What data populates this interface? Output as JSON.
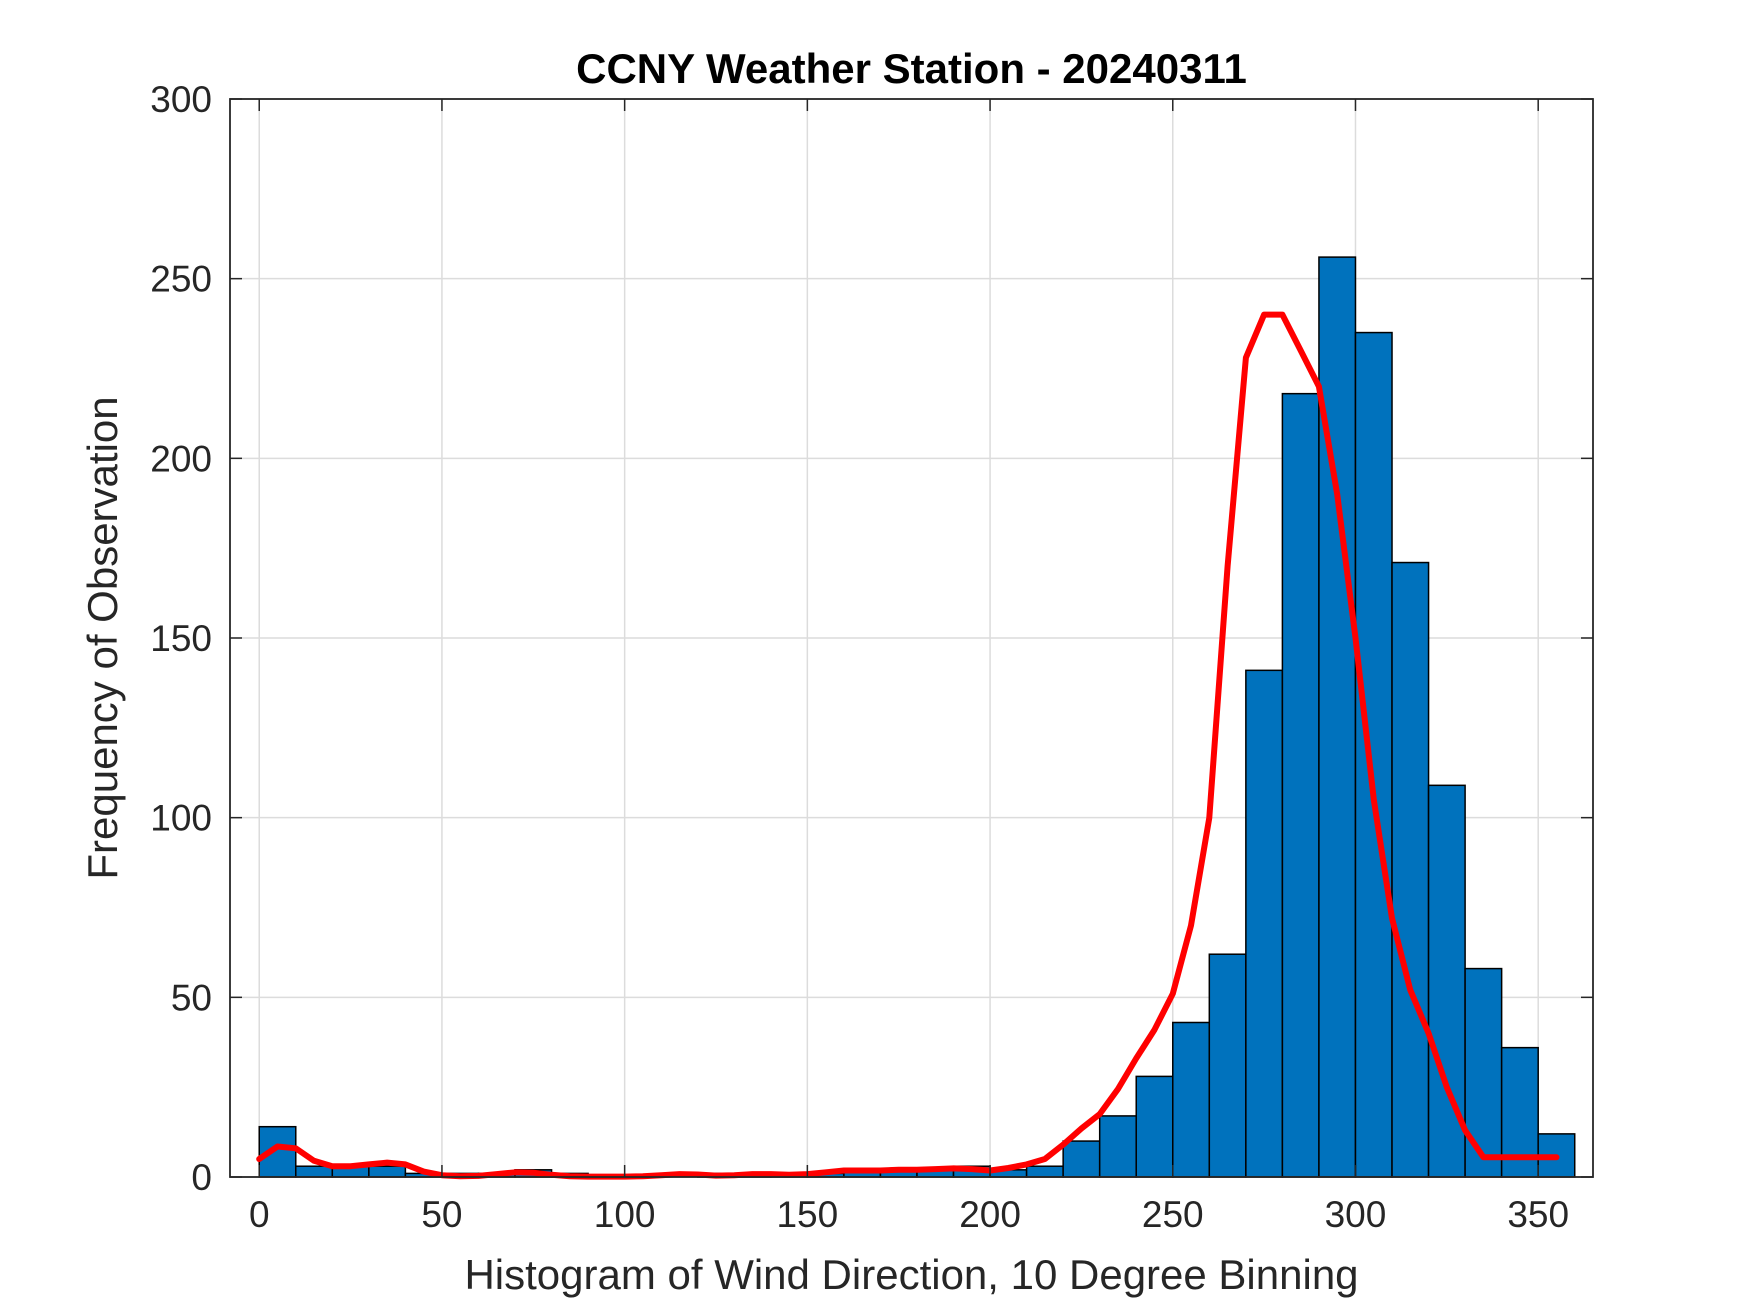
{
  "chart_data": {
    "type": "bar",
    "title": "CCNY Weather Station - 20240311",
    "xlabel": "Histogram of Wind Direction, 10 Degree Binning",
    "ylabel": "Frequency of Observation",
    "xlim": [
      -8,
      365
    ],
    "ylim": [
      0,
      300
    ],
    "xticks": [
      0,
      50,
      100,
      150,
      200,
      250,
      300,
      350
    ],
    "xtick_labels": [
      "0",
      "50",
      "100",
      "150",
      "200",
      "250",
      "300",
      "350"
    ],
    "yticks": [
      0,
      50,
      100,
      150,
      200,
      250,
      300
    ],
    "ytick_labels": [
      "0",
      "50",
      "100",
      "150",
      "200",
      "250",
      "300"
    ],
    "grid": true,
    "bin_width": 10,
    "bin_edges_start": [
      0,
      10,
      20,
      30,
      40,
      50,
      60,
      70,
      80,
      90,
      100,
      110,
      120,
      130,
      140,
      150,
      160,
      170,
      180,
      190,
      200,
      210,
      220,
      230,
      240,
      250,
      260,
      270,
      280,
      290,
      300,
      310,
      320,
      330,
      340,
      350
    ],
    "values": [
      14,
      3,
      3,
      3,
      1,
      1,
      1,
      2,
      1,
      0,
      0,
      0,
      1,
      1,
      1,
      1,
      2,
      2,
      2,
      3,
      2,
      3,
      10,
      17,
      28,
      43,
      62,
      141,
      218,
      256,
      235,
      171,
      109,
      58,
      36,
      12
    ],
    "series": [
      {
        "name": "histogram",
        "type": "bar",
        "color": "#0072BD"
      },
      {
        "name": "smoothed fit",
        "type": "line",
        "color": "#ff0000",
        "x": [
          0,
          5,
          10,
          15,
          20,
          25,
          30,
          35,
          40,
          45,
          50,
          55,
          60,
          65,
          70,
          75,
          80,
          85,
          90,
          95,
          100,
          105,
          110,
          115,
          120,
          125,
          130,
          135,
          140,
          145,
          150,
          155,
          160,
          165,
          170,
          175,
          180,
          185,
          190,
          195,
          200,
          205,
          210,
          215,
          220,
          225,
          230,
          235,
          240,
          245,
          250,
          255,
          260,
          265,
          270,
          275,
          280,
          285,
          290,
          295,
          300,
          305,
          310,
          315,
          320,
          325,
          330,
          335,
          340,
          345,
          350,
          355
        ],
        "y": [
          5,
          8.5,
          8,
          4.5,
          3,
          3,
          3.5,
          4,
          3.5,
          1.5,
          0.5,
          0.2,
          0.3,
          0.8,
          1.3,
          1.2,
          0.6,
          0.2,
          0.1,
          0.1,
          0.1,
          0.2,
          0.5,
          0.8,
          0.7,
          0.4,
          0.5,
          0.8,
          0.8,
          0.6,
          0.8,
          1.3,
          1.8,
          1.8,
          1.8,
          2,
          2,
          2.2,
          2.4,
          2.2,
          1.8,
          2.5,
          3.5,
          5,
          9,
          13.5,
          17.5,
          24.5,
          33,
          41,
          51,
          70,
          100,
          170,
          228,
          240,
          240,
          230,
          220,
          190,
          150,
          105,
          72,
          52,
          40,
          25,
          13,
          5.5,
          5.5,
          5.5,
          5.5,
          5.5
        ]
      }
    ]
  }
}
